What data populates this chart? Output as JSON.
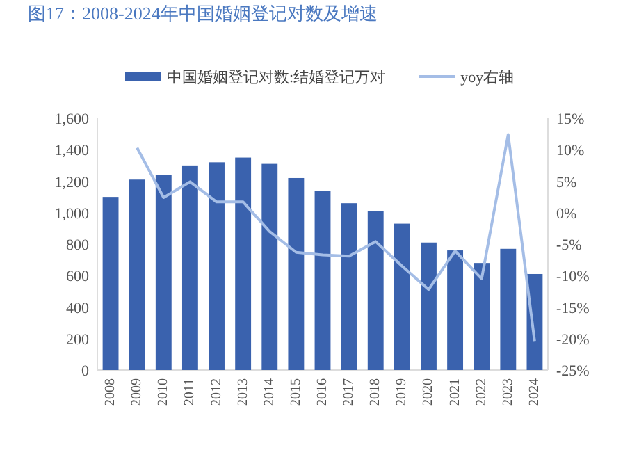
{
  "chart_data": {
    "type": "bar",
    "title": "图17：2008-2024年中国婚姻登记对数及增速",
    "categories": [
      "2008",
      "2009",
      "2010",
      "2011",
      "2012",
      "2013",
      "2014",
      "2015",
      "2016",
      "2017",
      "2018",
      "2019",
      "2020",
      "2021",
      "2022",
      "2023",
      "2024"
    ],
    "series": [
      {
        "name": "中国婚姻登记对数:结婚登记万对",
        "color": "#3a62ae",
        "values": [
          1100,
          1210,
          1240,
          1300,
          1320,
          1350,
          1310,
          1220,
          1140,
          1060,
          1010,
          930,
          810,
          760,
          680,
          770,
          610
        ]
      },
      {
        "name": "yoy右轴",
        "type": "line",
        "axis": "y2",
        "color": "#a4bde6",
        "values": [
          null,
          10.3,
          2.4,
          4.9,
          1.7,
          1.7,
          -3.0,
          -6.3,
          -6.7,
          -6.9,
          -4.6,
          -8.5,
          -12.2,
          -6.1,
          -10.5,
          12.4,
          -20.5
        ]
      }
    ],
    "ylim": [
      0,
      1600
    ],
    "yticks": [
      {
        "value": 0,
        "label": "0"
      },
      {
        "value": 200,
        "label": "200"
      },
      {
        "value": 400,
        "label": "400"
      },
      {
        "value": 600,
        "label": "600"
      },
      {
        "value": 800,
        "label": "800"
      },
      {
        "value": 1000,
        "label": "1,000"
      },
      {
        "value": 1200,
        "label": "1,200"
      },
      {
        "value": 1400,
        "label": "1,400"
      },
      {
        "value": 1600,
        "label": "1,600"
      }
    ],
    "y2lim": [
      -25,
      15
    ],
    "y2ticks": [
      {
        "value": -25,
        "label": "-25%"
      },
      {
        "value": -20,
        "label": "-20%"
      },
      {
        "value": -15,
        "label": "-15%"
      },
      {
        "value": -10,
        "label": "-10%"
      },
      {
        "value": -5,
        "label": "-5%"
      },
      {
        "value": 0,
        "label": "0%"
      },
      {
        "value": 5,
        "label": "5%"
      },
      {
        "value": 10,
        "label": "10%"
      },
      {
        "value": 15,
        "label": "15%"
      }
    ],
    "legend": "top",
    "grid": false
  }
}
